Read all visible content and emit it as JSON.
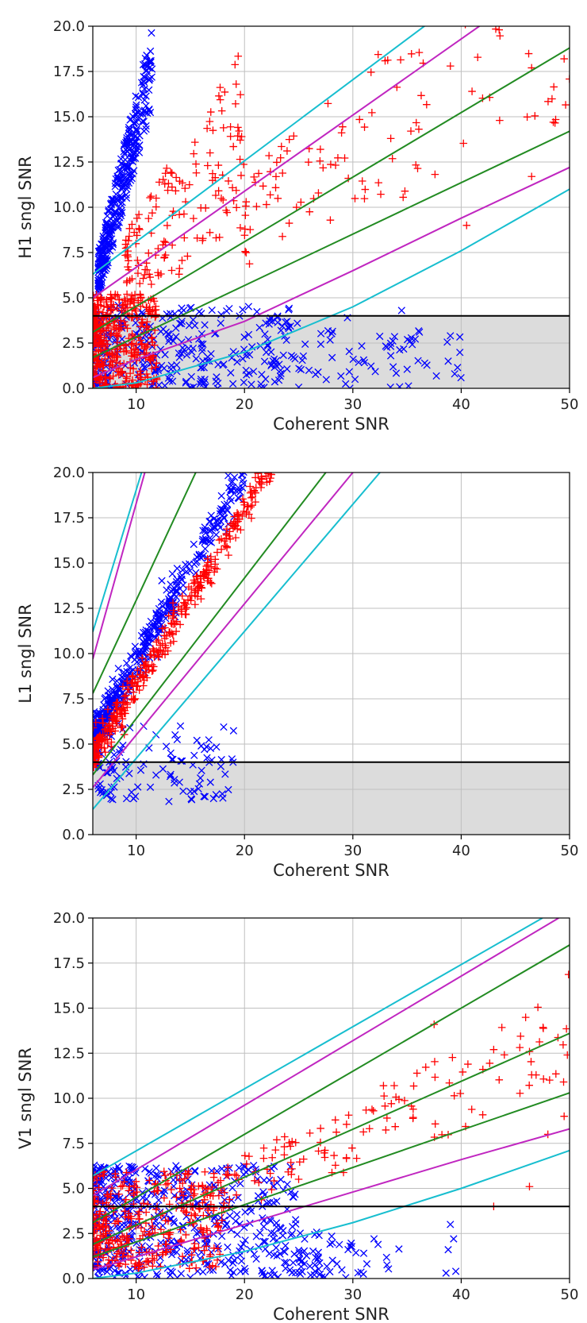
{
  "colors": {
    "background": "#ffffff",
    "veto_region": "#dcdcdc",
    "grid": "#bfbfbf",
    "threshold_line": "#000000",
    "signal_markers": "#ff0000",
    "background_markers": "#0000ff",
    "contour_outer": "#17becf",
    "contour_middle": "#c026c0",
    "contour_inner": "#228b22"
  },
  "marker_names": {
    "signal": "red plus markers",
    "background": "blue x markers"
  },
  "chart_data": [
    {
      "type": "scatter",
      "title": "",
      "xlabel": "Coherent SNR",
      "ylabel": "H1 sngl SNR",
      "xlim": [
        6,
        50
      ],
      "ylim": [
        0,
        20
      ],
      "xticks": [
        "10",
        "20",
        "30",
        "40",
        "50"
      ],
      "yticks": [
        "0.0",
        "2.5",
        "5.0",
        "7.5",
        "10.0",
        "12.5",
        "15.0",
        "17.5",
        "20.0"
      ],
      "grid": true,
      "threshold": 4.0,
      "shaded_below_threshold": true,
      "contour_lines": [
        {
          "color": "cyan",
          "x": [
            6,
            50
          ],
          "y": [
            6.3,
            26
          ]
        },
        {
          "color": "magenta",
          "x": [
            6,
            50
          ],
          "y": [
            5.0,
            23.5
          ]
        },
        {
          "color": "green",
          "x": [
            6,
            50
          ],
          "y": [
            3.1,
            18.8
          ]
        },
        {
          "color": "green",
          "x": [
            6,
            50
          ],
          "y": [
            1.7,
            14.2
          ]
        },
        {
          "color": "magenta",
          "x": [
            6,
            10,
            20,
            30,
            40,
            50
          ],
          "y": [
            0.6,
            1.6,
            3.7,
            6.5,
            9.4,
            12.2
          ]
        },
        {
          "color": "cyan",
          "x": [
            6,
            10,
            20,
            30,
            40,
            50
          ],
          "y": [
            0.0,
            0.3,
            2.0,
            4.5,
            7.6,
            11.0
          ]
        }
      ],
      "series": [
        {
          "marker": "x",
          "color": "blue",
          "clusters": [
            {
              "x": [
                6.5,
                11.5
              ],
              "y_at_start": [
                5.0,
                7.5
              ],
              "y_at_end": [
                15.5,
                20.0
              ],
              "count": 340
            },
            {
              "x": [
                6.0,
                25.0
              ],
              "y": [
                0.0,
                4.6
              ],
              "count": 340
            },
            {
              "x": [
                25.0,
                40.0
              ],
              "y": [
                0.0,
                3.5
              ],
              "count": 60
            },
            {
              "points": [
                [
                  29.5,
                  3.9
                ],
                [
                  34.5,
                  4.3
                ],
                [
                  39.0,
                  2.9
                ],
                [
                  33.5,
                  1.8
                ],
                [
                  38.8,
                  1.5
                ],
                [
                  39.4,
                  0.8
                ],
                [
                  30.2,
                  0.5
                ]
              ]
            }
          ]
        },
        {
          "marker": "+",
          "color": "red",
          "clusters": [
            {
              "x": [
                6.0,
                12.0
              ],
              "y": [
                0.0,
                5.2
              ],
              "count": 400
            },
            {
              "x": [
                9.0,
                20.0
              ],
              "y_band": [
                0.45,
                0.95
              ],
              "count": 150
            },
            {
              "x": [
                20.0,
                50.0
              ],
              "y_band": [
                0.3,
                0.58
              ],
              "count": 110
            },
            {
              "points": [
                [
                  43.5,
                  19.8
                ],
                [
                  39.0,
                  17.8
                ],
                [
                  41.0,
                  16.4
                ],
                [
                  46.5,
                  17.7
                ],
                [
                  49.5,
                  18.2
                ],
                [
                  48.5,
                  14.7
                ],
                [
                  46.5,
                  11.7
                ],
                [
                  33.5,
                  13.8
                ],
                [
                  27.0,
                  13.2
                ],
                [
                  40.5,
                  9.0
                ]
              ]
            }
          ]
        }
      ]
    },
    {
      "type": "scatter",
      "title": "",
      "xlabel": "Coherent SNR",
      "ylabel": "L1 sngl SNR",
      "xlim": [
        6,
        50
      ],
      "ylim": [
        0,
        20
      ],
      "xticks": [
        "10",
        "20",
        "30",
        "40",
        "50"
      ],
      "yticks": [
        "0.0",
        "2.5",
        "5.0",
        "7.5",
        "10.0",
        "12.5",
        "15.0",
        "17.5",
        "20.0"
      ],
      "grid": true,
      "threshold": 4.0,
      "shaded_below_threshold": true,
      "contour_lines": [
        {
          "color": "cyan",
          "x": [
            6,
            10.5
          ],
          "y": [
            11.2,
            20
          ]
        },
        {
          "color": "magenta",
          "x": [
            6,
            10.8
          ],
          "y": [
            9.7,
            20
          ]
        },
        {
          "color": "green",
          "x": [
            6,
            15.5
          ],
          "y": [
            7.8,
            20
          ]
        },
        {
          "color": "green",
          "x": [
            6,
            27.5
          ],
          "y": [
            3.3,
            20
          ]
        },
        {
          "color": "magenta",
          "x": [
            6,
            30
          ],
          "y": [
            2.6,
            20
          ]
        },
        {
          "color": "cyan",
          "x": [
            6,
            32.5
          ],
          "y": [
            1.4,
            20
          ]
        }
      ],
      "series": [
        {
          "marker": "x",
          "color": "blue",
          "clusters": [
            {
              "x": [
                6.0,
                20.0
              ],
              "y_from": 5.4,
              "slope": 1.05,
              "spread": 0.55,
              "count": 420
            },
            {
              "x": [
                6.5,
                19.0
              ],
              "y": [
                1.8,
                6.0
              ],
              "count": 110
            }
          ]
        },
        {
          "marker": "+",
          "color": "red",
          "clusters": [
            {
              "x": [
                6.0,
                22.5
              ],
              "y_from": 4.4,
              "slope": 0.97,
              "spread": 0.45,
              "count": 380
            }
          ]
        }
      ]
    },
    {
      "type": "scatter",
      "title": "",
      "xlabel": "Coherent SNR",
      "ylabel": "V1 sngl SNR",
      "xlim": [
        6,
        50
      ],
      "ylim": [
        0,
        20
      ],
      "xticks": [
        "10",
        "20",
        "30",
        "40",
        "50"
      ],
      "yticks": [
        "0.0",
        "2.5",
        "5.0",
        "7.5",
        "10.0",
        "12.5",
        "15.0",
        "17.5",
        "20.0"
      ],
      "grid": true,
      "threshold": 4.0,
      "shaded_below_threshold": false,
      "contour_lines": [
        {
          "color": "cyan",
          "x": [
            6,
            47.5
          ],
          "y": [
            5.7,
            20
          ]
        },
        {
          "color": "magenta",
          "x": [
            6,
            49
          ],
          "y": [
            4.6,
            20
          ]
        },
        {
          "color": "green",
          "x": [
            6,
            50
          ],
          "y": [
            3.1,
            18.5
          ]
        },
        {
          "color": "green",
          "x": [
            6,
            50
          ],
          "y": [
            1.9,
            13.6
          ]
        },
        {
          "color": "green",
          "x": [
            6,
            50
          ],
          "y": [
            1.2,
            10.3
          ]
        },
        {
          "color": "magenta",
          "x": [
            6,
            10,
            20,
            30,
            40,
            50
          ],
          "y": [
            0.5,
            1.2,
            3.0,
            4.8,
            6.6,
            8.3
          ]
        },
        {
          "color": "cyan",
          "x": [
            6,
            10,
            20,
            30,
            40,
            50
          ],
          "y": [
            0.0,
            0.3,
            1.5,
            3.1,
            5.0,
            7.1
          ]
        }
      ],
      "series": [
        {
          "marker": "x",
          "color": "blue",
          "clusters": [
            {
              "x": [
                6.0,
                25.0
              ],
              "y": [
                0.0,
                6.3
              ],
              "count": 520
            },
            {
              "x": [
                25.0,
                34.5
              ],
              "y": [
                0.0,
                2.6
              ],
              "count": 60
            },
            {
              "points": [
                [
                  39.0,
                  3.0
                ],
                [
                  39.3,
                  2.2
                ],
                [
                  38.8,
                  1.6
                ],
                [
                  39.5,
                  0.4
                ],
                [
                  38.6,
                  0.3
                ]
              ]
            }
          ]
        },
        {
          "marker": "+",
          "color": "red",
          "clusters": [
            {
              "x": [
                6.0,
                18.0
              ],
              "y": [
                0.5,
                6.0
              ],
              "count": 330
            },
            {
              "x": [
                15.0,
                50.0
              ],
              "y_band": [
                0.2,
                0.34
              ],
              "count": 150
            },
            {
              "points": [
                [
                  37.5,
                  14.1
                ],
                [
                  43.0,
                  12.7
                ],
                [
                  49.8,
                  12.4
                ],
                [
                  42.0,
                  11.6
                ],
                [
                  46.5,
                  11.3
                ],
                [
                  43.0,
                  4.0
                ],
                [
                  46.3,
                  5.1
                ],
                [
                  49.5,
                  9.0
                ],
                [
                  48.0,
                  8.0
                ]
              ]
            }
          ]
        }
      ]
    }
  ]
}
